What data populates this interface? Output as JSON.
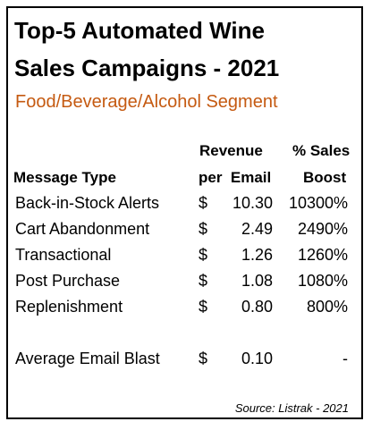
{
  "chart_data": {
    "type": "table",
    "title_line1": "Top-5 Automated Wine",
    "title_line2": "Sales Campaigns - 2021",
    "subtitle": "Food/Beverage/Alcohol Segment",
    "columns": {
      "message_type": "Message Type",
      "revenue_line1": "Revenue",
      "revenue_line2": "per  Email",
      "boost_line1": "% Sales",
      "boost_line2": "Boost"
    },
    "rows": [
      {
        "label": "Back-in-Stock Alerts",
        "currency": "$",
        "revenue": "10.30",
        "boost": "10300%"
      },
      {
        "label": "Cart Abandonment",
        "currency": "$",
        "revenue": "2.49",
        "boost": "2490%"
      },
      {
        "label": "Transactional",
        "currency": "$",
        "revenue": "1.26",
        "boost": "1260%"
      },
      {
        "label": "Post Purchase",
        "currency": "$",
        "revenue": "1.08",
        "boost": "1080%"
      },
      {
        "label": "Replenishment",
        "currency": "$",
        "revenue": "0.80",
        "boost": "800%"
      }
    ],
    "baseline": {
      "label": "Average Email Blast",
      "currency": "$",
      "revenue": "0.10",
      "boost": "-"
    },
    "source": "Source: Listrak - 2021",
    "accent_color": "#c55a11"
  }
}
